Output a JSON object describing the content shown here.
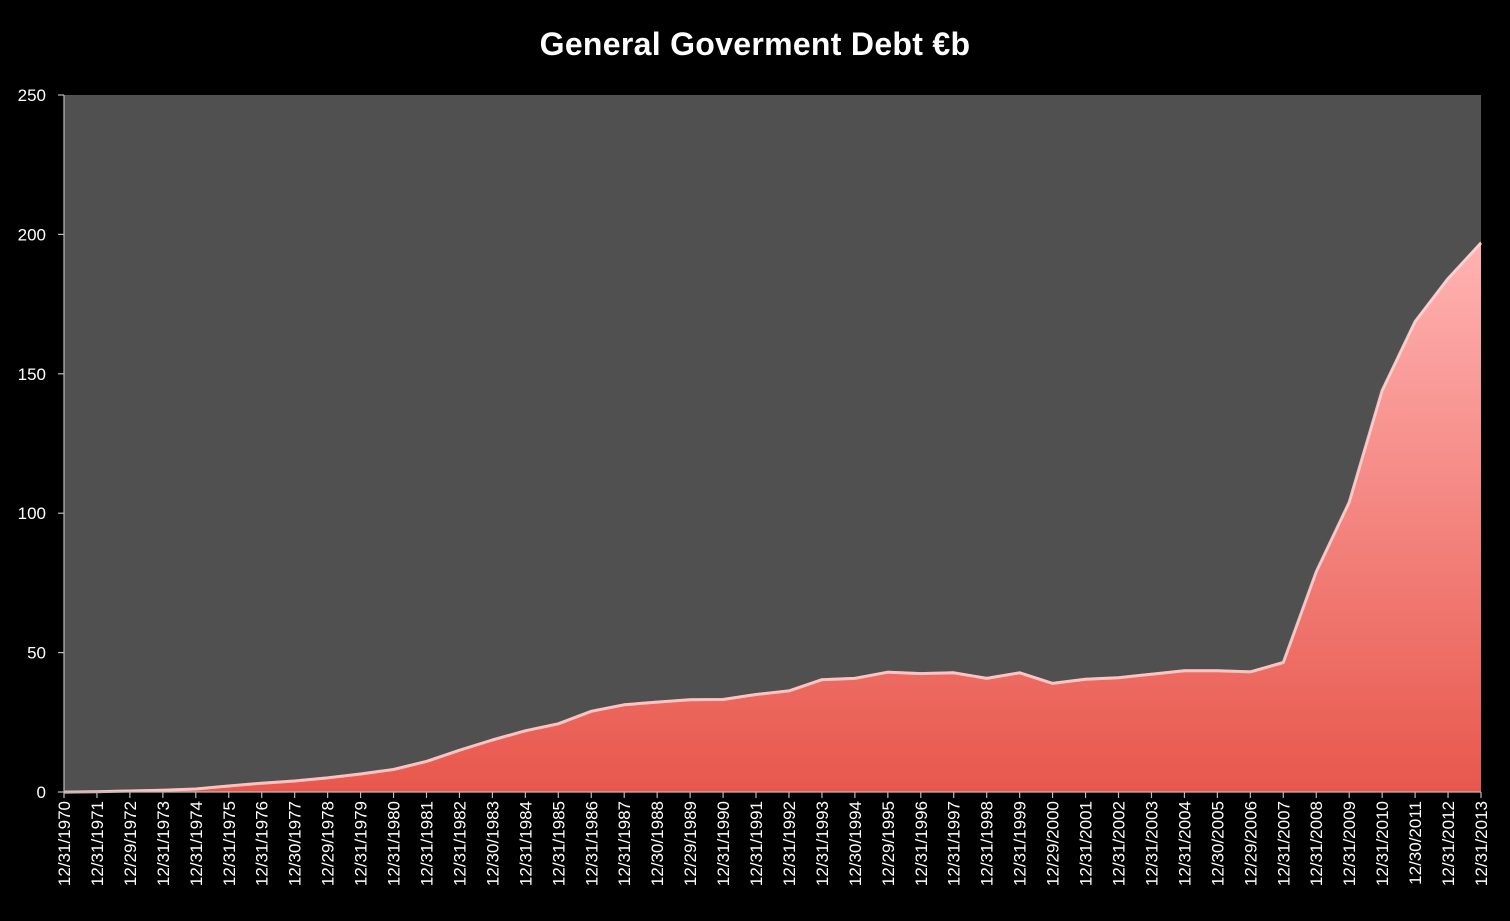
{
  "chart_data": {
    "type": "area",
    "title": "General Goverment Debt  €b",
    "xlabel": "",
    "ylabel": "",
    "ylim": [
      0,
      250
    ],
    "yticks": [
      0,
      50,
      100,
      150,
      200,
      250
    ],
    "grid": false,
    "legend": "none",
    "colors": {
      "background": "#000000",
      "plot_area": "#505050",
      "area_top": "#ffb3b3",
      "area_bottom": "#e8574c",
      "text": "#ffffff",
      "axis": "#bbbbbb"
    },
    "categories": [
      "12/31/1970",
      "12/31/1971",
      "12/29/1972",
      "12/31/1973",
      "12/31/1974",
      "12/31/1975",
      "12/31/1976",
      "12/30/1977",
      "12/29/1978",
      "12/31/1979",
      "12/31/1980",
      "12/31/1981",
      "12/31/1982",
      "12/30/1983",
      "12/31/1984",
      "12/31/1985",
      "12/31/1986",
      "12/31/1987",
      "12/30/1988",
      "12/29/1989",
      "12/31/1990",
      "12/31/1991",
      "12/31/1992",
      "12/31/1993",
      "12/30/1994",
      "12/29/1995",
      "12/31/1996",
      "12/31/1997",
      "12/31/1998",
      "12/31/1999",
      "12/29/2000",
      "12/31/2001",
      "12/31/2002",
      "12/31/2003",
      "12/31/2004",
      "12/30/2005",
      "12/29/2006",
      "12/31/2007",
      "12/31/2008",
      "12/31/2009",
      "12/31/2010",
      "12/30/2011",
      "12/31/2012",
      "12/31/2013"
    ],
    "series": [
      {
        "values": [
          0.5,
          0.6,
          0.9,
          1.2,
          1.6,
          2.7,
          3.7,
          4.5,
          5.6,
          7.0,
          8.6,
          11.5,
          15.5,
          19.2,
          22.5,
          25.0,
          29.5,
          31.8,
          32.8,
          33.6,
          33.7,
          35.5,
          36.8,
          40.8,
          41.3,
          43.5,
          43.0,
          43.3,
          41.3,
          43.3,
          39.5,
          41.0,
          41.5,
          42.8,
          44.0,
          44.0,
          43.6,
          47.0,
          79.5,
          104.5,
          144.5,
          169.3,
          184.7,
          197.5
        ]
      }
    ]
  }
}
